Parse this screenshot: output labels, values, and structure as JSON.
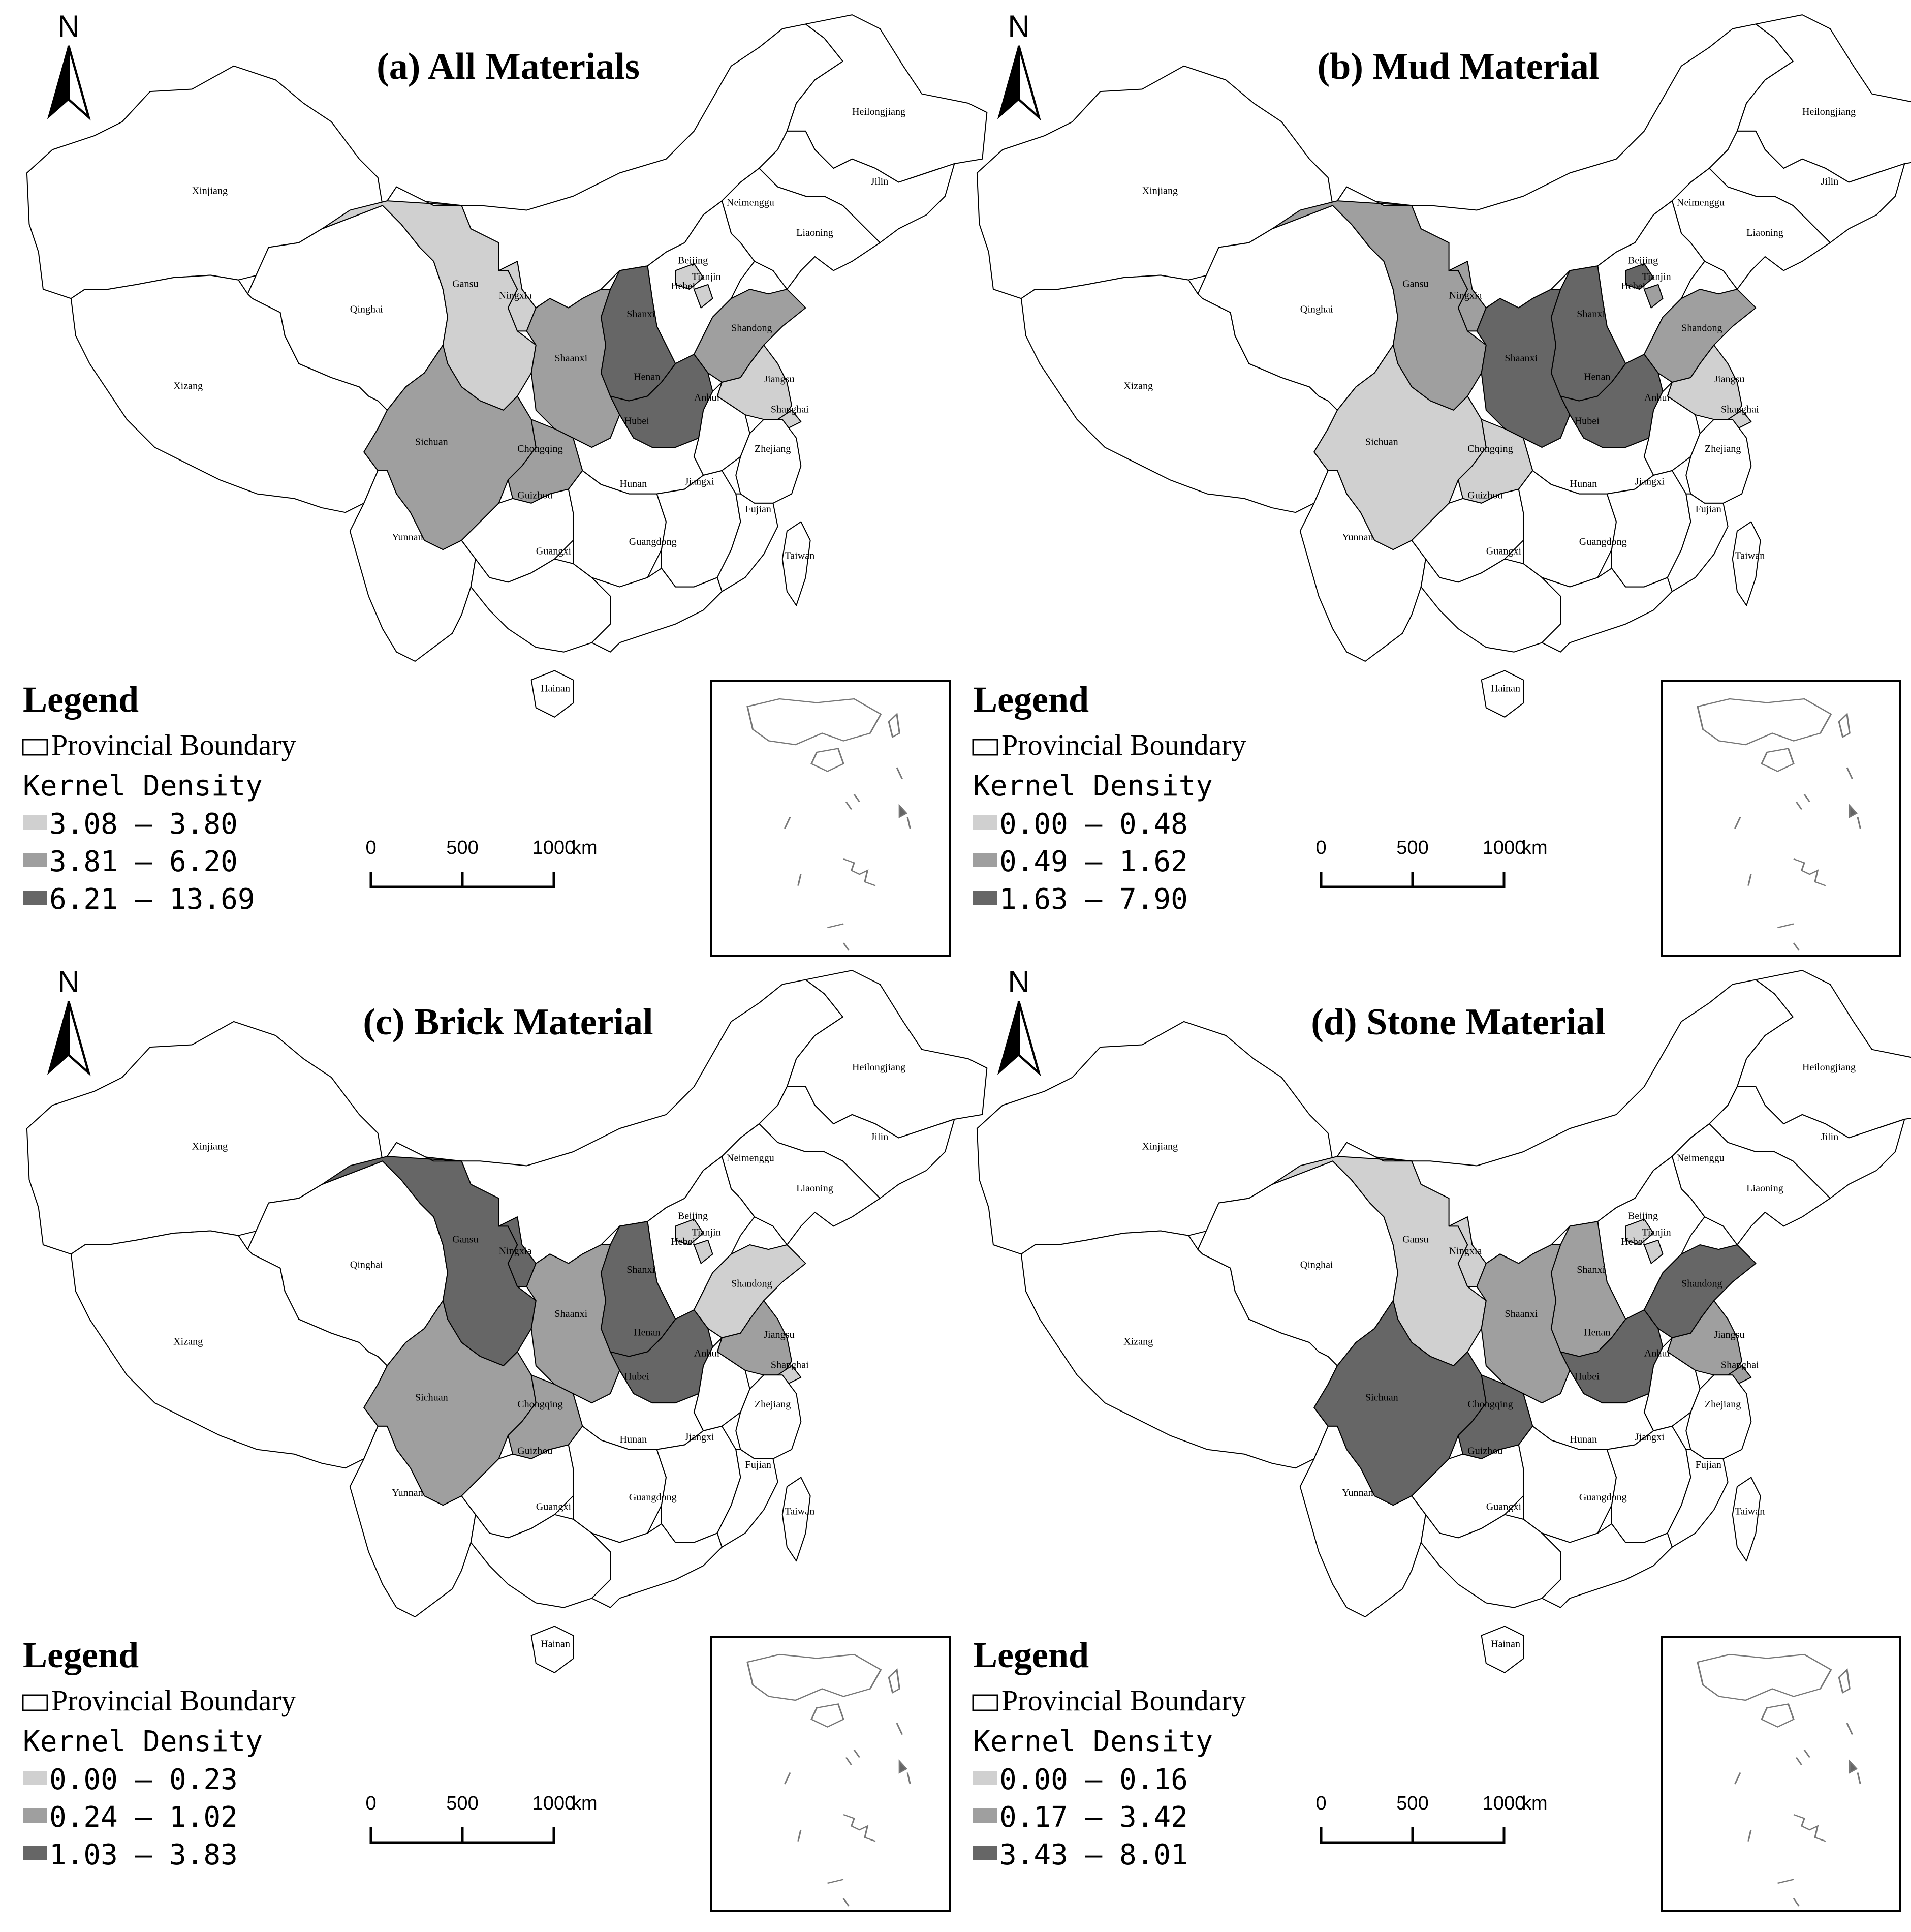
{
  "scale_bar": {
    "labels": [
      "0",
      "500",
      "1000"
    ],
    "unit": "km"
  },
  "north_label": "N",
  "legend": {
    "title": "Legend",
    "boundary_label": "Provincial Boundary",
    "density_label": "Kernel Density"
  },
  "class_colors": [
    "#ffffff",
    "#d0d0d0",
    "#9f9f9f",
    "#666666"
  ],
  "panels": [
    {
      "title": "(a) All Materials",
      "classes": [
        "3.08 – 3.80",
        "3.81 – 6.20",
        "6.21 – 13.69"
      ],
      "shading": {
        "Gansu": 1,
        "Ningxia": 1,
        "Jiangsu": 1,
        "Shanghai": 1,
        "Beijing": 1,
        "Tianjin": 1,
        "Shaanxi": 2,
        "Sichuan": 2,
        "Shandong": 2,
        "Chongqing": 2,
        "Shanxi": 3,
        "Henan": 3
      }
    },
    {
      "title": "(b) Mud Material",
      "classes": [
        "0.00 – 0.48",
        "0.49 – 1.62",
        "1.63 – 7.90"
      ],
      "shading": {
        "Sichuan": 1,
        "Jiangsu": 1,
        "Shanghai": 1,
        "Chongqing": 1,
        "Gansu": 2,
        "Ningxia": 2,
        "Shandong": 2,
        "Tianjin": 2,
        "Shaanxi": 3,
        "Shanxi": 3,
        "Henan": 3,
        "Beijing": 3
      }
    },
    {
      "title": "(c) Brick Material",
      "classes": [
        "0.00 – 0.23",
        "0.24 – 1.02",
        "1.03 – 3.83"
      ],
      "shading": {
        "Shandong": 1,
        "Shanghai": 1,
        "Beijing": 1,
        "Tianjin": 1,
        "Shaanxi": 2,
        "Sichuan": 2,
        "Jiangsu": 2,
        "Chongqing": 2,
        "Gansu": 3,
        "Ningxia": 3,
        "Shanxi": 3,
        "Henan": 3
      }
    },
    {
      "title": "(d) Stone Material",
      "classes": [
        "0.00 – 0.16",
        "0.17 – 3.42",
        "3.43 – 8.01"
      ],
      "shading": {
        "Gansu": 1,
        "Ningxia": 1,
        "Beijing": 1,
        "Tianjin": 1,
        "Shaanxi": 2,
        "Shanxi": 2,
        "Jiangsu": 2,
        "Shanghai": 2,
        "Sichuan": 3,
        "Chongqing": 3,
        "Henan": 3,
        "Shandong": 3
      }
    }
  ],
  "provinces": [
    "Xinjiang",
    "Xizang",
    "Qinghai",
    "Gansu",
    "Ningxia",
    "Neimenggu",
    "Heilongjiang",
    "Jilin",
    "Liaoning",
    "Beijing",
    "Tianjin",
    "Hebei",
    "Shanxi",
    "Shaanxi",
    "Shandong",
    "Henan",
    "Jiangsu",
    "Anhui",
    "Shanghai",
    "Hubei",
    "Sichuan",
    "Chongqing",
    "Yunnan",
    "Guizhou",
    "Hunan",
    "Jiangxi",
    "Zhejiang",
    "Fujian",
    "Guangxi",
    "Guangdong",
    "Hainan",
    "Taiwan"
  ]
}
